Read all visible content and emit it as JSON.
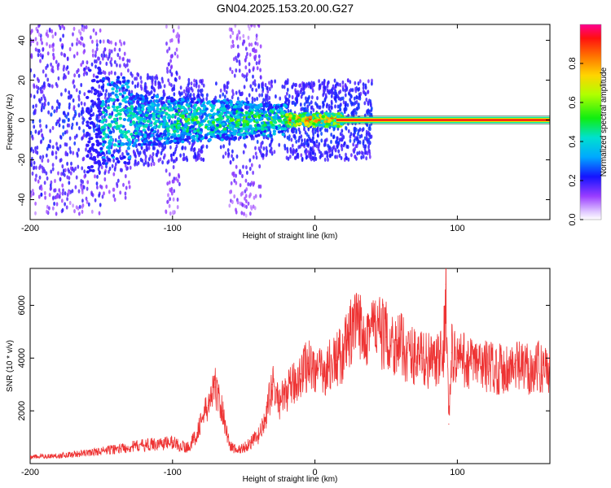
{
  "title": "GN04.2025.153.20.00.G27",
  "chart_data": [
    {
      "type": "heatmap",
      "xlabel": "Height of straight line (km)",
      "ylabel": "Frequency (Hz)",
      "xlim": [
        -200,
        165
      ],
      "ylim": [
        -50,
        48
      ],
      "x_ticks": [
        -200,
        -100,
        0,
        100
      ],
      "y_ticks": [
        -40,
        -20,
        0,
        20,
        40
      ],
      "colorbar": {
        "label": "Normalized spectral amplitude",
        "range": [
          0,
          1
        ],
        "ticks": [
          0.0,
          0.2,
          0.4,
          0.6,
          0.8
        ],
        "tick_labels": [
          "0.0",
          "0.2",
          "0.4",
          "0.6",
          "0.8"
        ]
      },
      "bands": [
        {
          "x": [
            -200,
            -150
          ],
          "level": 0.2
        },
        {
          "x": [
            -150,
            -20
          ],
          "level": 0.5
        },
        {
          "x": [
            -20,
            20
          ],
          "level": 0.75
        },
        {
          "x": [
            20,
            165
          ],
          "level": 0.9
        }
      ]
    },
    {
      "type": "line",
      "xlabel": "Height of straight line (km)",
      "ylabel": "SNR (10 * v/v)",
      "xlim": [
        -200,
        165
      ],
      "ylim": [
        0,
        7400
      ],
      "x_ticks": [
        -200,
        -100,
        0,
        100
      ],
      "y_ticks": [
        2000,
        4000,
        6000
      ],
      "color": "#ee3333",
      "x": [
        -200,
        -180,
        -160,
        -140,
        -120,
        -100,
        -90,
        -85,
        -80,
        -75,
        -70,
        -65,
        -60,
        -55,
        -50,
        -45,
        -40,
        -35,
        -30,
        -25,
        -20,
        -15,
        -10,
        -5,
        0,
        5,
        10,
        15,
        20,
        25,
        30,
        35,
        40,
        45,
        50,
        55,
        60,
        65,
        70,
        75,
        80,
        85,
        90,
        92,
        94,
        96,
        100,
        110,
        120,
        130,
        140,
        150,
        165
      ],
      "values": [
        250,
        300,
        400,
        550,
        700,
        800,
        600,
        900,
        1600,
        2200,
        2900,
        2000,
        700,
        500,
        600,
        800,
        1000,
        1600,
        3000,
        2300,
        2700,
        3000,
        3400,
        3800,
        3600,
        3400,
        3700,
        3900,
        4200,
        4900,
        5200,
        5100,
        5200,
        5000,
        4800,
        4600,
        4500,
        4200,
        4100,
        4000,
        3900,
        3800,
        4000,
        6800,
        1500,
        4200,
        4000,
        3800,
        3700,
        3600,
        3650,
        3600,
        3700
      ]
    }
  ]
}
